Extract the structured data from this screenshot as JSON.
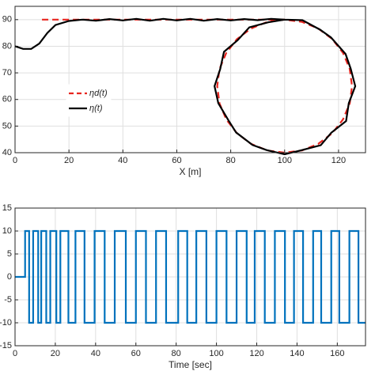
{
  "chart_data": [
    {
      "type": "line",
      "xlabel": "X [m]",
      "xlim": [
        0,
        130
      ],
      "ylim": [
        40,
        95
      ],
      "xticks": [
        0,
        20,
        40,
        60,
        80,
        100,
        120
      ],
      "yticks": [
        40,
        50,
        60,
        70,
        80,
        90
      ],
      "grid": true,
      "legend": "left",
      "series": [
        {
          "name": "ηd(t)",
          "color": "#e8251f",
          "style": "dashed",
          "x": [
            10,
            100,
            106.47,
            112.5,
            117.68,
            121.65,
            124.15,
            125,
            124.15,
            121.65,
            117.68,
            112.5,
            106.47,
            100,
            93.53,
            87.5,
            82.32,
            78.35,
            75.85,
            75,
            75.85,
            78.35,
            82.32,
            87.5,
            93.53,
            100
          ],
          "values": [
            90,
            90,
            89.15,
            86.65,
            82.68,
            77.5,
            71.47,
            65,
            58.53,
            52.5,
            47.32,
            43.35,
            40.85,
            40,
            40.85,
            43.35,
            47.32,
            52.5,
            58.53,
            65,
            71.47,
            77.5,
            82.68,
            86.65,
            89.15,
            90
          ]
        },
        {
          "name": "η(t)",
          "color": "#000000",
          "style": "solid",
          "x": [
            0,
            3,
            6,
            9,
            12,
            15,
            20,
            25,
            30,
            35,
            40,
            45,
            50,
            55,
            60,
            65,
            70,
            75,
            80,
            85,
            90,
            95,
            100,
            106.6,
            113.2,
            117.2,
            122.6,
            124.5,
            126.2,
            123.8,
            122.8,
            117.3,
            113.4,
            106.2,
            100,
            93.3,
            88.1,
            82,
            79.2,
            75.4,
            74,
            76.1,
            77.5,
            82.6,
            86.9,
            93.9,
            100
          ],
          "values": [
            80,
            79,
            79,
            81,
            85,
            88,
            89.5,
            90,
            89.6,
            90.2,
            89.7,
            90.3,
            89.6,
            90.3,
            89.7,
            90.3,
            89.6,
            90.2,
            89.7,
            90.2,
            89.8,
            90.3,
            90,
            89.8,
            86.2,
            83.3,
            77.1,
            71.6,
            65,
            58.6,
            51.9,
            47.5,
            42.8,
            40.9,
            39.4,
            41,
            42.9,
            47.6,
            52.1,
            58.6,
            65,
            71.4,
            77.9,
            82.3,
            87.1,
            89,
            90
          ]
        }
      ]
    },
    {
      "type": "line",
      "xlabel": "Time [sec]",
      "xlim": [
        0,
        174
      ],
      "ylim": [
        -15,
        15
      ],
      "xticks": [
        0,
        20,
        40,
        60,
        80,
        100,
        120,
        140,
        160
      ],
      "yticks": [
        -15,
        -10,
        -5,
        0,
        5,
        10,
        15
      ],
      "grid": true,
      "series": [
        {
          "color": "#0072bd",
          "style": "solid",
          "x": [
            0,
            5,
            5,
            7,
            7,
            9,
            9,
            11.5,
            11.5,
            13,
            13,
            15.5,
            15.5,
            17.5,
            17.5,
            20.5,
            20.5,
            22.5,
            22.5,
            26.5,
            26.5,
            30,
            30,
            34.5,
            34.5,
            39.5,
            39.5,
            44.5,
            44.5,
            49.5,
            49.5,
            55,
            55,
            60,
            60,
            65,
            65,
            70,
            70,
            75,
            75,
            81,
            81,
            85.5,
            85.5,
            90,
            90,
            95,
            95,
            100,
            100,
            105,
            105,
            110,
            110,
            115,
            115,
            119,
            119,
            124,
            124,
            129,
            129,
            134,
            134,
            138.5,
            138.5,
            143,
            143,
            148,
            148,
            152,
            152,
            157,
            157,
            161,
            161,
            166,
            166,
            170.5,
            170.5,
            174
          ],
          "values": [
            0,
            0,
            10,
            10,
            -10,
            -10,
            10,
            10,
            -10,
            -10,
            10,
            10,
            -10,
            -10,
            10,
            10,
            -10,
            -10,
            10,
            10,
            -10,
            -10,
            10,
            10,
            -10,
            -10,
            10,
            10,
            -10,
            -10,
            10,
            10,
            -10,
            -10,
            10,
            10,
            -10,
            -10,
            10,
            10,
            -10,
            -10,
            10,
            10,
            -10,
            -10,
            10,
            10,
            -10,
            -10,
            10,
            10,
            -10,
            -10,
            10,
            10,
            -10,
            -10,
            10,
            10,
            -10,
            -10,
            10,
            10,
            -10,
            -10,
            10,
            10,
            -10,
            -10,
            10,
            10,
            -10,
            -10,
            10,
            10,
            -10,
            -10,
            10,
            10,
            -10,
            -10
          ]
        }
      ]
    }
  ]
}
